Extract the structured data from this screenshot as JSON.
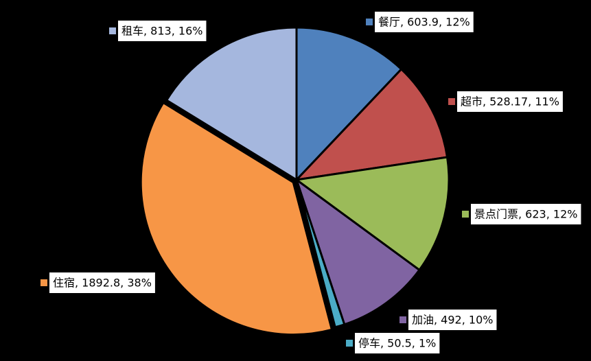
{
  "chart_data": {
    "type": "pie",
    "values": [
      603.9,
      528.17,
      623,
      492,
      50.5,
      1892.8,
      813
    ],
    "value_labels": [
      "餐厅, 603.9, 12%",
      "超市, 528.17, 11%",
      "景点门票, 623, 12%",
      "加油, 492, 10%",
      "停车, 50.5, 1%",
      "住宿, 1892.8, 38%",
      "租车, 813, 16%"
    ],
    "colors": [
      "#4f81bd",
      "#c0504d",
      "#9bbb59",
      "#8064a2",
      "#4bacc6",
      "#f79646",
      "#a5b7de"
    ]
  }
}
